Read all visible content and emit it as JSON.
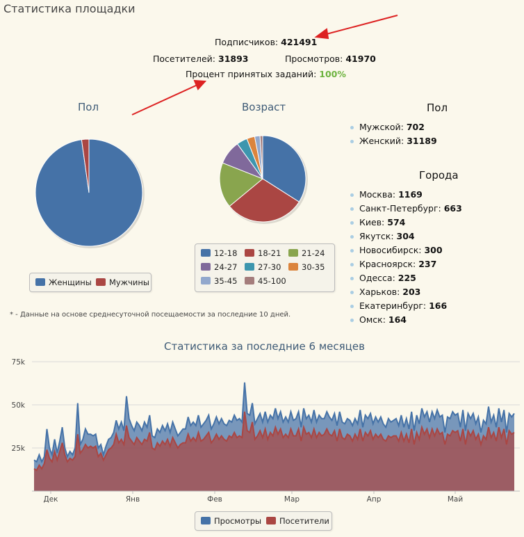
{
  "page_title": "Статистика площадки",
  "summary": {
    "subscribers_label": "Подписчиков:",
    "subscribers_value": "421491",
    "visitors_label": "Посетителей:",
    "visitors_value": "31893",
    "views_label": "Просмотров:",
    "views_value": "41970",
    "accept_label": "Процент принятых заданий:",
    "accept_value": "100%"
  },
  "colors": {
    "blue": "#4572a7",
    "red": "#aa4643",
    "green": "#89a54e",
    "purple": "#80699b",
    "teal": "#3d96ae",
    "orange": "#db843d",
    "lightblue": "#92a8cd",
    "rose": "#a47d7c",
    "accent_green": "#6db33f",
    "annotation_arrow": "#dd2222"
  },
  "gender_list": {
    "title": "Пол",
    "items": [
      {
        "label": "Мужской:",
        "value": "702"
      },
      {
        "label": "Женский:",
        "value": "31189"
      }
    ]
  },
  "cities_list": {
    "title": "Города",
    "items": [
      {
        "label": "Москва:",
        "value": "1169"
      },
      {
        "label": "Санкт-Петербург:",
        "value": "663"
      },
      {
        "label": "Киев:",
        "value": "574"
      },
      {
        "label": "Якутск:",
        "value": "304"
      },
      {
        "label": "Новосибирск:",
        "value": "300"
      },
      {
        "label": "Красноярск:",
        "value": "237"
      },
      {
        "label": "Одесса:",
        "value": "225"
      },
      {
        "label": "Харьков:",
        "value": "203"
      },
      {
        "label": "Екатеринбург:",
        "value": "166"
      },
      {
        "label": "Омск:",
        "value": "164"
      }
    ]
  },
  "footnote": "* - Данные на основе среднесуточной посещаемости за последние 10 дней.",
  "chart_data": [
    {
      "type": "pie",
      "title": "Пол",
      "slices": [
        {
          "name": "Женщины",
          "value": 31189,
          "color": "#4572a7"
        },
        {
          "name": "Мужчины",
          "value": 702,
          "color": "#aa4643"
        }
      ],
      "legend": "bottom"
    },
    {
      "type": "pie",
      "title": "Возраст",
      "slices": [
        {
          "name": "12-18",
          "value": 34,
          "color": "#4572a7"
        },
        {
          "name": "18-21",
          "value": 30,
          "color": "#aa4643"
        },
        {
          "name": "21-24",
          "value": 17,
          "color": "#89a54e"
        },
        {
          "name": "24-27",
          "value": 9,
          "color": "#80699b"
        },
        {
          "name": "27-30",
          "value": 4,
          "color": "#3d96ae"
        },
        {
          "name": "30-35",
          "value": 3,
          "color": "#db843d"
        },
        {
          "name": "35-45",
          "value": 2,
          "color": "#92a8cd"
        },
        {
          "name": "45-100",
          "value": 1,
          "color": "#a47d7c"
        }
      ],
      "legend": "bottom"
    },
    {
      "type": "area",
      "title": "Статистика за последние 6 месяцев",
      "x_labels": [
        "Дек",
        "Янв",
        "Фев",
        "Мар",
        "Апр",
        "Май"
      ],
      "y_ticks": [
        "75k",
        "50k",
        "25k"
      ],
      "ylim": [
        0,
        75000
      ],
      "grid": true,
      "legend": "bottom",
      "series": [
        {
          "name": "Просмотры",
          "color": "#4572a7",
          "values": [
            18000,
            17000,
            21000,
            17000,
            20000,
            36000,
            25000,
            21000,
            30000,
            22000,
            29000,
            37000,
            25000,
            20000,
            23000,
            21000,
            25000,
            51000,
            27000,
            30000,
            36000,
            33000,
            33000,
            32000,
            33000,
            25000,
            27000,
            21000,
            26000,
            30000,
            31000,
            34000,
            41000,
            36000,
            40000,
            35000,
            55000,
            42000,
            38000,
            35000,
            40000,
            38000,
            35000,
            40000,
            37000,
            44000,
            32000,
            31000,
            36000,
            34000,
            38000,
            35000,
            39000,
            34000,
            40000,
            36000,
            32000,
            34000,
            36000,
            36000,
            43000,
            38000,
            40000,
            38000,
            44000,
            37000,
            39000,
            41000,
            44000,
            36000,
            39000,
            43000,
            39000,
            42000,
            39000,
            38000,
            41000,
            40000,
            44000,
            41000,
            42000,
            40000,
            63000,
            45000,
            44000,
            51000,
            39000,
            42000,
            45000,
            40000,
            46000,
            40000,
            44000,
            42000,
            48000,
            42000,
            46000,
            40000,
            43000,
            40000,
            46000,
            41000,
            42000,
            46000,
            37000,
            48000,
            42000,
            44000,
            40000,
            47000,
            40000,
            44000,
            42000,
            42000,
            46000,
            43000,
            41000,
            45000,
            38000,
            46000,
            40000,
            39000,
            42000,
            41000,
            38000,
            42000,
            39000,
            47000,
            37000,
            44000,
            42000,
            45000,
            39000,
            43000,
            40000,
            43000,
            39000,
            37000,
            42000,
            40000,
            41000,
            42000,
            38000,
            44000,
            37000,
            42000,
            36000,
            46000,
            35000,
            44000,
            39000,
            48000,
            43000,
            46000,
            40000,
            46000,
            42000,
            47000,
            43000,
            44000,
            34000,
            43000,
            42000,
            46000,
            44000,
            45000,
            37000,
            47000,
            35000,
            45000,
            42000,
            45000,
            39000,
            43000,
            34000,
            41000,
            39000,
            49000,
            40000,
            44000,
            37000,
            48000,
            40000,
            47000,
            34000,
            45000,
            43000,
            45000
          ]
        },
        {
          "name": "Посетители",
          "color": "#aa4643",
          "values": [
            13000,
            12000,
            15000,
            13000,
            16000,
            24000,
            19000,
            17000,
            23000,
            18000,
            23000,
            28000,
            21000,
            17000,
            19000,
            18000,
            20000,
            33000,
            22000,
            24000,
            27000,
            25000,
            26000,
            25000,
            26000,
            20000,
            22000,
            18000,
            21000,
            24000,
            25000,
            27000,
            33000,
            28000,
            30000,
            27000,
            38000,
            31000,
            29000,
            27000,
            31000,
            29000,
            27000,
            30000,
            29000,
            34000,
            25000,
            24000,
            28000,
            26000,
            29000,
            27000,
            30000,
            26000,
            31000,
            28000,
            25000,
            27000,
            28000,
            28000,
            33000,
            29000,
            31000,
            29000,
            34000,
            29000,
            30000,
            32000,
            34000,
            28000,
            30000,
            33000,
            30000,
            32000,
            30000,
            29000,
            32000,
            31000,
            34000,
            31000,
            32000,
            31000,
            46000,
            35000,
            34000,
            40000,
            30000,
            32000,
            35000,
            31000,
            36000,
            30000,
            34000,
            32000,
            37000,
            33000,
            36000,
            31000,
            33000,
            31000,
            36000,
            32000,
            32000,
            36000,
            29000,
            37000,
            33000,
            34000,
            31000,
            36000,
            31000,
            34000,
            32000,
            33000,
            36000,
            33000,
            32000,
            35000,
            29000,
            36000,
            31000,
            30000,
            33000,
            32000,
            29000,
            33000,
            30000,
            36000,
            29000,
            34000,
            32000,
            35000,
            30000,
            33000,
            31000,
            33000,
            30000,
            29000,
            32000,
            31000,
            32000,
            32000,
            29000,
            34000,
            29000,
            33000,
            28000,
            36000,
            27000,
            34000,
            30000,
            37000,
            33000,
            36000,
            31000,
            36000,
            32000,
            36000,
            33000,
            34000,
            27000,
            33000,
            32000,
            35000,
            34000,
            35000,
            29000,
            36000,
            27000,
            35000,
            32000,
            35000,
            30000,
            33000,
            27000,
            32000,
            30000,
            37000,
            31000,
            34000,
            29000,
            37000,
            31000,
            36000,
            27000,
            35000,
            33000,
            34000
          ]
        }
      ]
    }
  ]
}
